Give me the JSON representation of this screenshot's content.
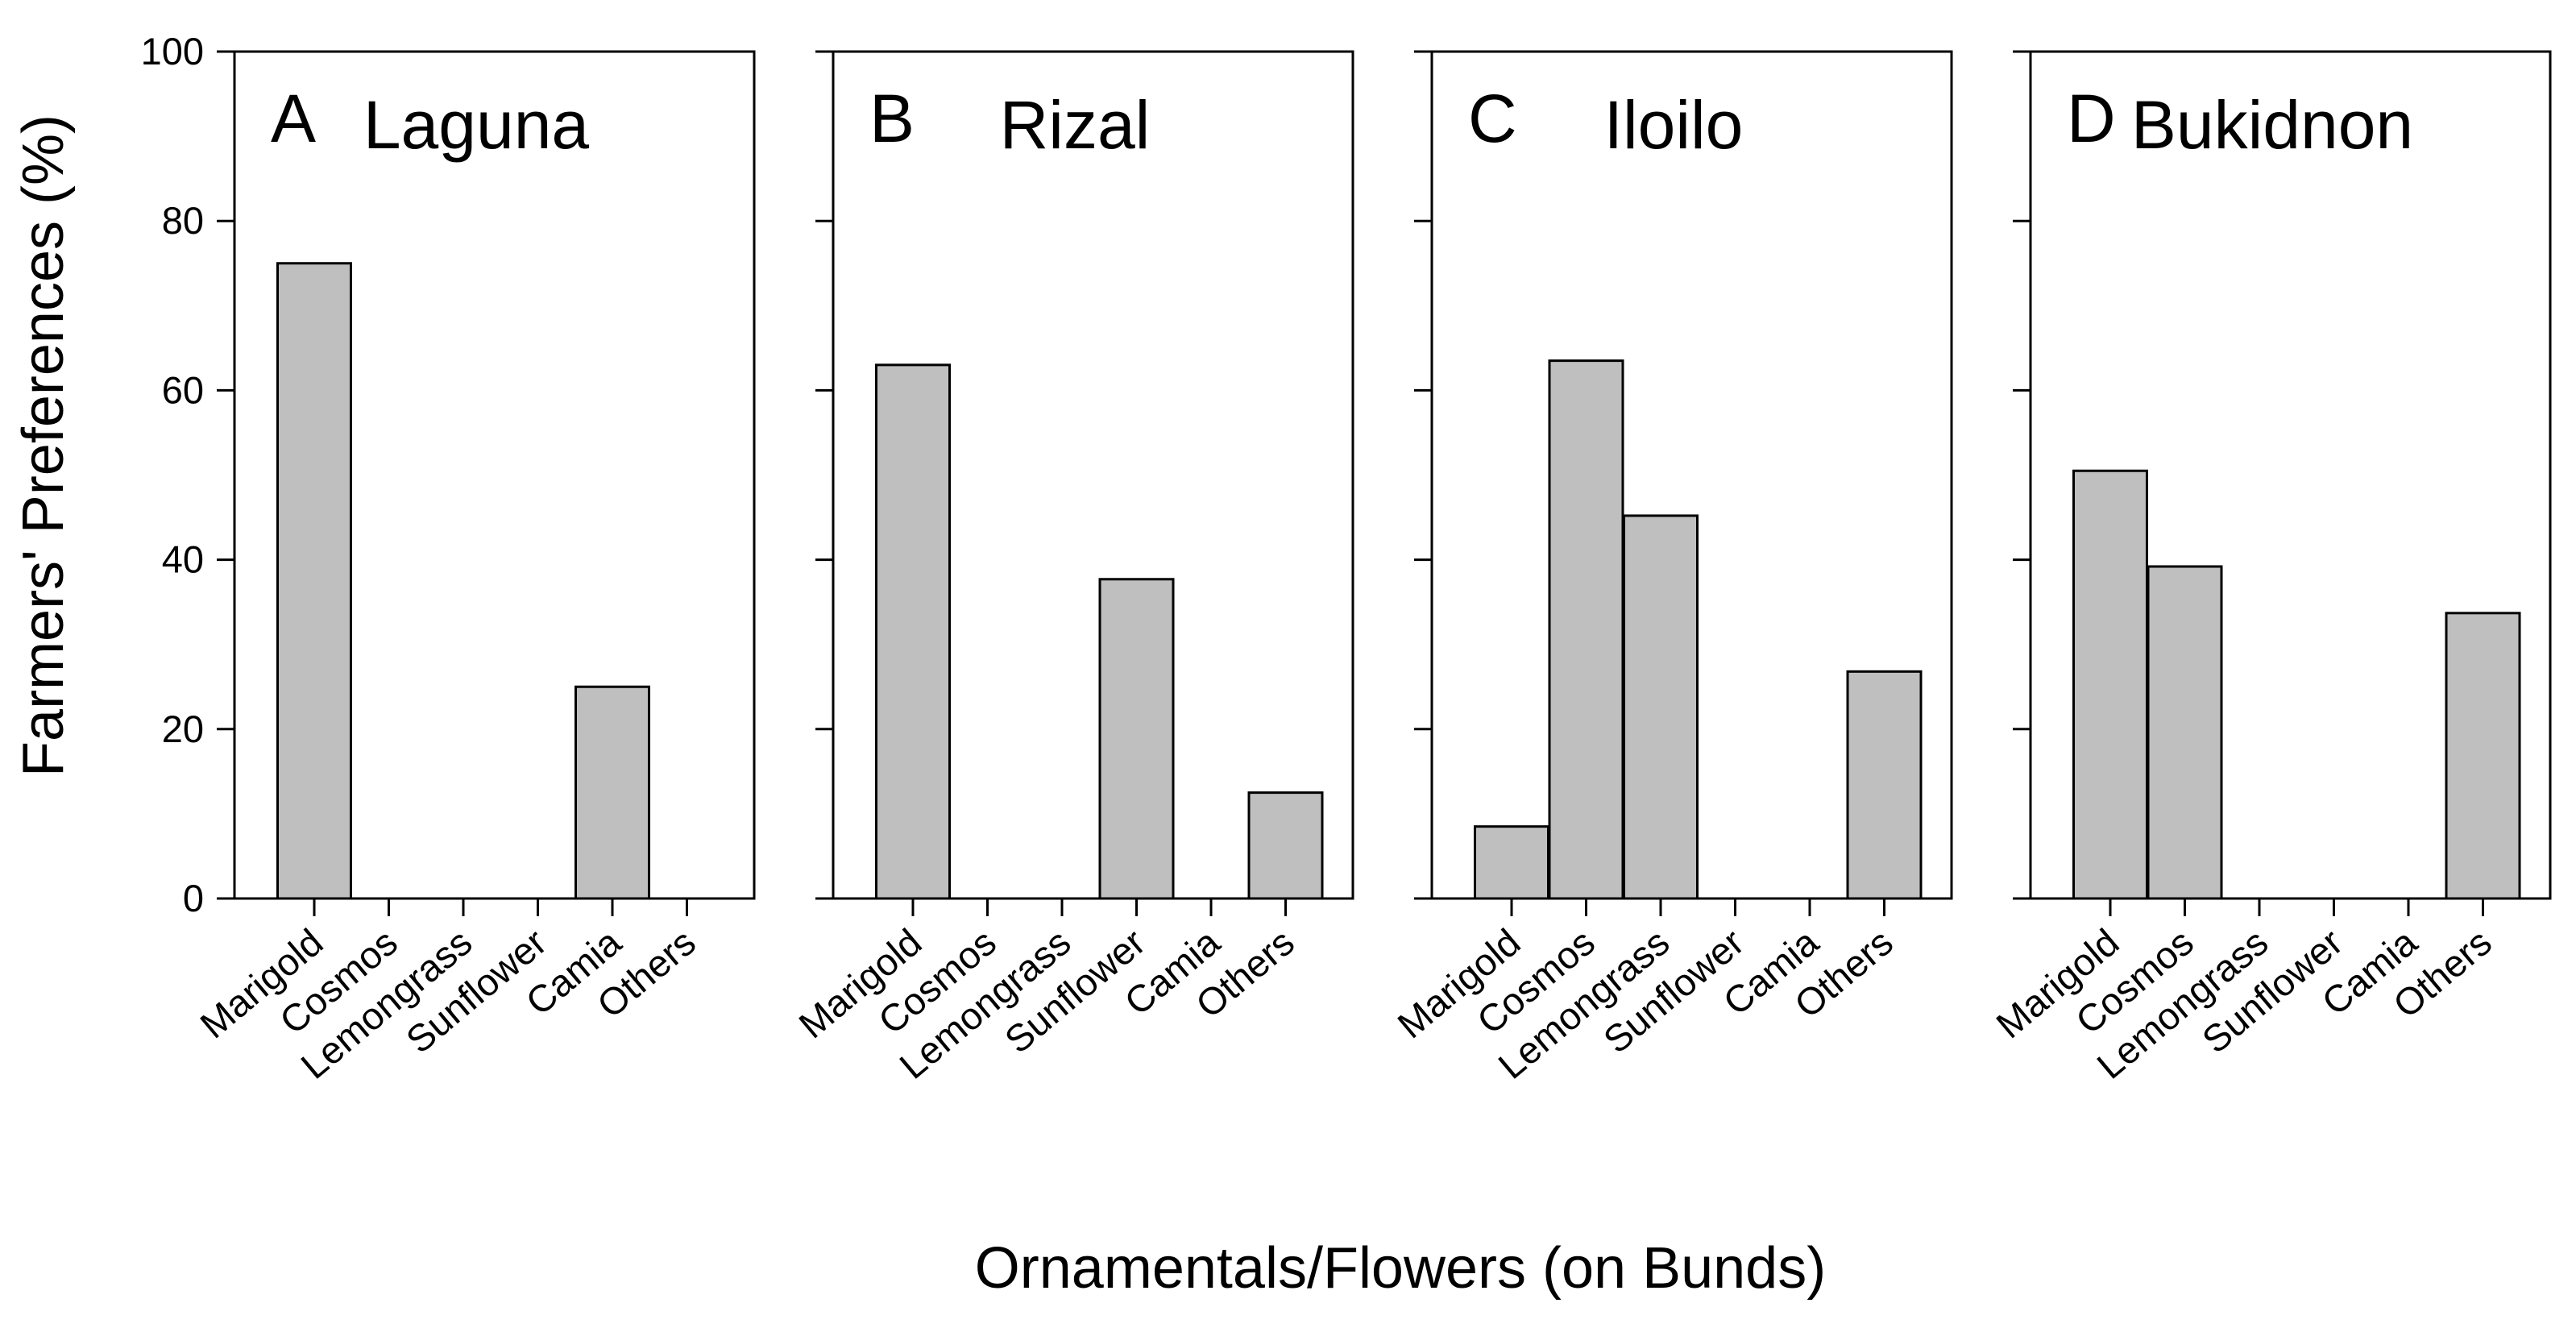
{
  "figure": {
    "ylabel": "Farmers' Preferences (%)",
    "xlabel": "Ornamentals/Flowers (on Bunds)"
  },
  "chart_data": [
    {
      "type": "bar",
      "panel": "A",
      "title": "Laguna",
      "categories": [
        "Marigold",
        "Cosmos",
        "Lemongrass",
        "Sunflower",
        "Camia",
        "Others"
      ],
      "values": [
        75,
        0,
        0,
        0,
        25,
        0
      ],
      "ylim": [
        0,
        100
      ],
      "yticks": [
        0,
        20,
        40,
        60,
        80,
        100
      ],
      "grid": false
    },
    {
      "type": "bar",
      "panel": "B",
      "title": "Rizal",
      "categories": [
        "Marigold",
        "Cosmos",
        "Lemongrass",
        "Sunflower",
        "Camia",
        "Others"
      ],
      "values": [
        63,
        0,
        0,
        37.7,
        0,
        12.5
      ],
      "ylim": [
        0,
        100
      ],
      "grid": false
    },
    {
      "type": "bar",
      "panel": "C",
      "title": "Iloilo",
      "categories": [
        "Marigold",
        "Cosmos",
        "Lemongrass",
        "Sunflower",
        "Camia",
        "Others"
      ],
      "values": [
        8.5,
        63.5,
        45.2,
        0,
        0,
        26.8
      ],
      "ylim": [
        0,
        100
      ],
      "grid": false
    },
    {
      "type": "bar",
      "panel": "D",
      "title": "Bukidnon",
      "categories": [
        "Marigold",
        "Cosmos",
        "Lemongrass",
        "Sunflower",
        "Camia",
        "Others"
      ],
      "values": [
        50.5,
        39.2,
        0,
        0,
        0,
        33.7
      ],
      "ylim": [
        0,
        100
      ],
      "grid": false
    }
  ]
}
